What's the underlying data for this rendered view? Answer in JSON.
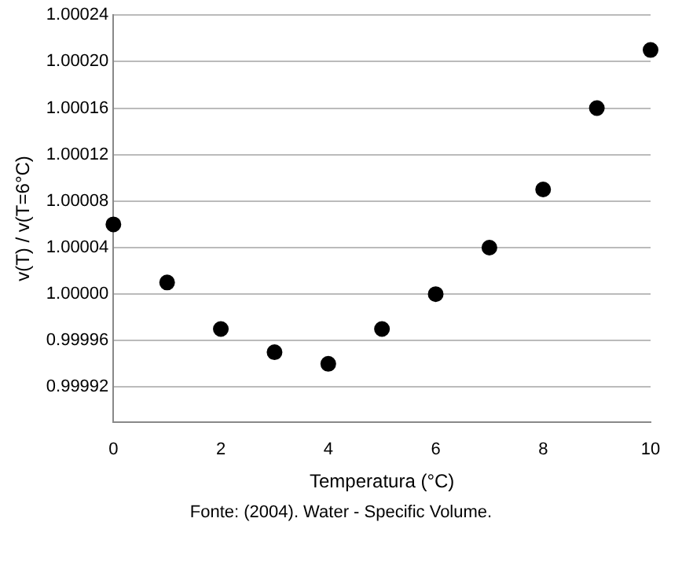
{
  "chart_data": {
    "type": "scatter",
    "xlabel": "Temperatura (°C)",
    "ylabel": "v(T) / v(T=6°C)",
    "x": [
      0,
      1,
      2,
      3,
      4,
      5,
      6,
      7,
      8,
      9,
      10
    ],
    "series": [
      {
        "color": "#000000",
        "values": [
          1.00006,
          1.00001,
          0.99997,
          0.99995,
          0.99994,
          0.99997,
          1.0,
          1.00004,
          1.00009,
          1.00016,
          1.00021
        ]
      }
    ],
    "xlim": [
      0,
      10
    ],
    "xticks": [
      0,
      2,
      4,
      6,
      8,
      10
    ],
    "ylim": [
      0.99989,
      1.00024
    ],
    "yticks": [
      0.99992,
      0.99996,
      {
        "value": 1,
        "label": "1.00000"
      },
      1.00004,
      1.00008,
      1.00012,
      1.00016,
      {
        "value": 1.0002,
        "label": "1.00020"
      },
      1.00024
    ],
    "grid": "y",
    "marker": "circle",
    "legend": false,
    "annotations": [
      "Fonte: (2004). Water - Specific Volume."
    ]
  }
}
